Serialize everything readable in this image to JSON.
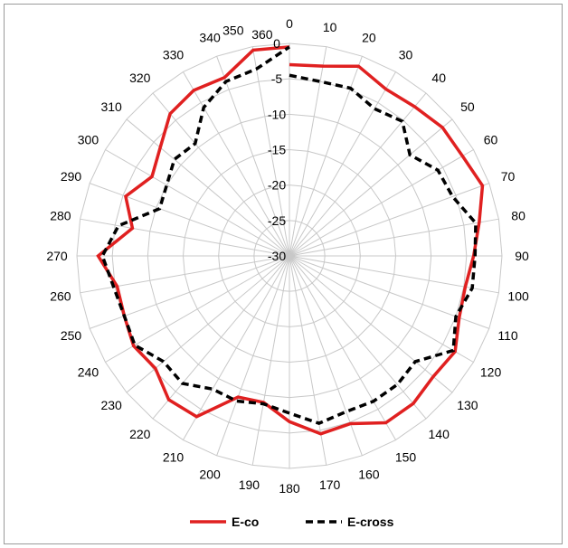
{
  "chart_data": {
    "type": "radar",
    "title": "",
    "angle_unit": "degrees",
    "angle_labels": [
      "0",
      "10",
      "20",
      "30",
      "40",
      "50",
      "60",
      "70",
      "80",
      "90",
      "100",
      "110",
      "120",
      "130",
      "140",
      "150",
      "160",
      "170",
      "180",
      "190",
      "200",
      "210",
      "220",
      "230",
      "240",
      "250",
      "260",
      "270",
      "280",
      "290",
      "300",
      "310",
      "320",
      "330",
      "340",
      "350",
      "360"
    ],
    "radial_ticks": [
      "0",
      "-5",
      "-10",
      "-15",
      "-20",
      "-25",
      "-30"
    ],
    "radial_range": [
      -30,
      0
    ],
    "grid": true,
    "legend_position": "bottom",
    "series": [
      {
        "name": "E-co",
        "color": "#e02020",
        "line_style": "solid",
        "angles": [
          0,
          10,
          20,
          30,
          40,
          50,
          60,
          70,
          80,
          90,
          100,
          110,
          120,
          130,
          140,
          150,
          160,
          170,
          180,
          190,
          200,
          210,
          220,
          230,
          240,
          250,
          260,
          270,
          280,
          290,
          300,
          310,
          320,
          330,
          340,
          350,
          360
        ],
        "values": [
          -3,
          -2.8,
          -1.5,
          -2.8,
          -2.5,
          -1.8,
          -1.8,
          -1,
          -2.8,
          -4,
          -4.8,
          -4.5,
          -3,
          -3.5,
          -2.8,
          -2.8,
          -4.8,
          -4.5,
          -6.6,
          -9,
          -8.8,
          -3.8,
          -3.5,
          -5.3,
          -4.6,
          -5.2,
          -5.3,
          -3,
          -7.5,
          -5.4,
          -7.6,
          -6.2,
          -3.8,
          -3,
          -3.2,
          -0.5,
          -0.5
        ]
      },
      {
        "name": "E-cross",
        "color": "#000000",
        "line_style": "dashed",
        "angles": [
          0,
          10,
          20,
          30,
          40,
          50,
          60,
          70,
          80,
          90,
          100,
          110,
          120,
          130,
          140,
          150,
          160,
          170,
          180,
          190,
          200,
          210,
          220,
          230,
          240,
          250,
          260,
          270,
          280,
          290,
          300,
          310,
          320,
          330,
          340,
          350,
          360
        ],
        "values": [
          -4.5,
          -5,
          -4.8,
          -6,
          -5.2,
          -7.8,
          -5.8,
          -5.5,
          -3.3,
          -3.8,
          -3.8,
          -5,
          -3.3,
          -6.8,
          -6.3,
          -6.3,
          -6.6,
          -6,
          -7.8,
          -8.8,
          -8.2,
          -8.3,
          -6.5,
          -6.8,
          -4.8,
          -5.2,
          -4.8,
          -3.6,
          -5.5,
          -10.5,
          -10,
          -8.8,
          -9.3,
          -5.8,
          -3.8,
          -3.2,
          -0.5
        ]
      }
    ]
  }
}
